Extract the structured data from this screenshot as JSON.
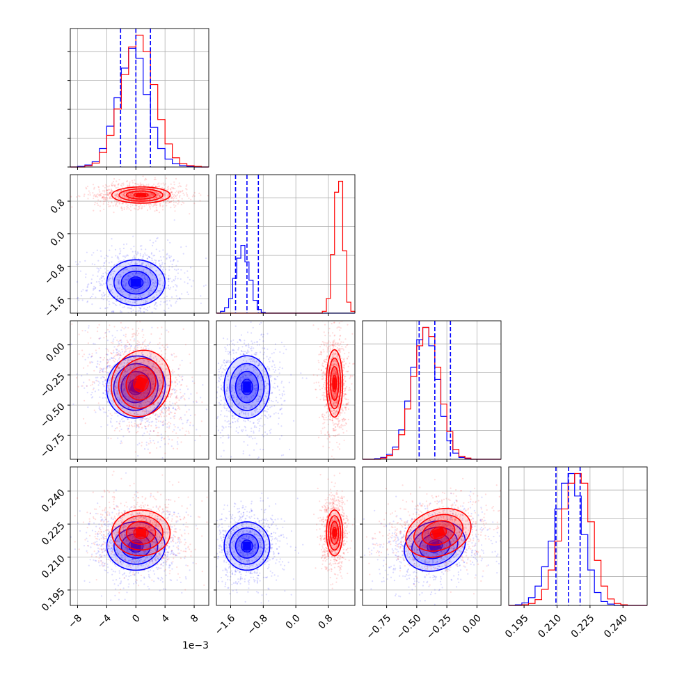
{
  "chart_data": {
    "type": "corner",
    "params": [
      {
        "range": [
          -9,
          10
        ],
        "ticks": [
          -8,
          -4,
          0,
          4,
          8
        ],
        "tick_labels": [
          "−8",
          "−4",
          "0",
          "4",
          "8"
        ],
        "offset_label": "1e−3"
      },
      {
        "range": [
          -1.95,
          1.45
        ],
        "ticks": [
          -1.6,
          -0.8,
          0.0,
          0.8
        ],
        "tick_labels": [
          "−1.6",
          "−0.8",
          "0.0",
          "0.8"
        ]
      },
      {
        "range": [
          -0.95,
          0.2
        ],
        "ticks": [
          -0.75,
          -0.5,
          -0.25,
          0.0
        ],
        "tick_labels": [
          "−0.75",
          "−0.50",
          "−0.25",
          "0.00"
        ]
      },
      {
        "range": [
          0.188,
          0.251
        ],
        "ticks": [
          0.195,
          0.21,
          0.225,
          0.24
        ],
        "tick_labels": [
          "0.195",
          "0.210",
          "0.225",
          "0.240"
        ]
      }
    ],
    "series": [
      {
        "color": "#0000ff",
        "means": [
          0.0,
          -1.2,
          -0.35,
          0.215
        ],
        "sigmas": [
          2.0,
          0.28,
          0.13,
          0.0055
        ],
        "quantiles": {
          "p0": [
            -2.1,
            0.0,
            2.0
          ],
          "p1": [
            -1.48,
            -1.2,
            -0.92
          ],
          "p2": [
            -0.48,
            -0.35,
            -0.22
          ],
          "p3": [
            0.2095,
            0.2152,
            0.2205
          ]
        }
      },
      {
        "color": "#ff0000",
        "means": [
          0.7,
          0.95,
          -0.32,
          0.221
        ],
        "sigmas": [
          2.0,
          0.1,
          0.14,
          0.0052
        ]
      }
    ],
    "histograms": {
      "p0": {
        "bins": [
          -9,
          -8,
          -7,
          -6,
          -5,
          -4,
          -3,
          -2,
          -1,
          0,
          1,
          2,
          3,
          4,
          5,
          6,
          7,
          8,
          9,
          10
        ],
        "blue": [
          0,
          1,
          3,
          8,
          28,
          62,
          105,
          150,
          180,
          165,
          110,
          60,
          28,
          12,
          5,
          2,
          1,
          0,
          0
        ],
        "red": [
          0,
          0,
          2,
          6,
          22,
          48,
          88,
          140,
          182,
          200,
          175,
          125,
          72,
          35,
          14,
          5,
          2,
          1,
          0
        ]
      },
      "p1": {
        "bins": [
          -1.95,
          -1.85,
          -1.75,
          -1.65,
          -1.55,
          -1.45,
          -1.35,
          -1.25,
          -1.15,
          -1.05,
          -0.95,
          -0.85,
          -0.75,
          -0.65,
          -0.55,
          -0.45,
          -0.35,
          -0.25,
          -0.15,
          -0.05,
          0.05,
          0.15,
          0.25,
          0.35,
          0.45,
          0.55,
          0.65,
          0.75,
          0.85,
          0.95,
          1.05,
          1.15,
          1.25,
          1.35,
          1.45
        ],
        "blue": [
          0,
          5,
          15,
          40,
          95,
          150,
          185,
          140,
          90,
          35,
          10,
          2,
          0,
          0,
          0,
          0,
          0,
          0,
          0,
          0,
          0,
          0,
          0,
          0,
          0,
          0,
          0,
          0,
          0,
          0,
          0,
          0,
          0,
          0
        ],
        "red": [
          0,
          0,
          0,
          0,
          0,
          0,
          0,
          0,
          0,
          0,
          0,
          0,
          0,
          0,
          0,
          0,
          0,
          0,
          0,
          0,
          0,
          0,
          0,
          0,
          0,
          0,
          5,
          40,
          160,
          330,
          360,
          170,
          30,
          5
        ]
      },
      "p2": {
        "bins": [
          -0.95,
          -0.9,
          -0.85,
          -0.8,
          -0.75,
          -0.7,
          -0.65,
          -0.6,
          -0.55,
          -0.5,
          -0.45,
          -0.4,
          -0.35,
          -0.3,
          -0.25,
          -0.2,
          -0.15,
          -0.1,
          -0.05,
          0.0,
          0.05,
          0.1,
          0.15,
          0.2
        ],
        "blue": [
          0,
          0,
          1,
          3,
          8,
          20,
          48,
          95,
          150,
          195,
          215,
          185,
          130,
          70,
          30,
          10,
          3,
          1,
          0,
          0,
          0,
          0,
          0
        ],
        "red": [
          0,
          0,
          0,
          2,
          6,
          16,
          40,
          82,
          135,
          185,
          215,
          200,
          150,
          90,
          45,
          16,
          5,
          2,
          0,
          0,
          0,
          0,
          0
        ]
      },
      "p3": {
        "bins": [
          0.188,
          0.191,
          0.194,
          0.197,
          0.2,
          0.203,
          0.206,
          0.209,
          0.212,
          0.215,
          0.218,
          0.221,
          0.224,
          0.227,
          0.23,
          0.233,
          0.236,
          0.239,
          0.242,
          0.245,
          0.248,
          0.251
        ],
        "blue": [
          0,
          1,
          4,
          12,
          30,
          60,
          100,
          150,
          190,
          205,
          170,
          110,
          55,
          20,
          6,
          2,
          0,
          0,
          0,
          0,
          0
        ],
        "red": [
          0,
          0,
          1,
          3,
          9,
          25,
          55,
          100,
          150,
          190,
          205,
          190,
          130,
          70,
          30,
          10,
          3,
          1,
          0,
          0,
          0
        ]
      }
    },
    "grid": true
  }
}
